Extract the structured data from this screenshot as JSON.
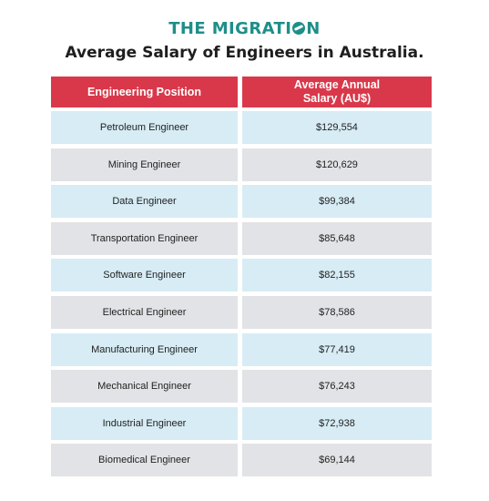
{
  "brand": {
    "before": "THE MIGRATI",
    "after": "N"
  },
  "title": "Average Salary of Engineers in Australia.",
  "table": {
    "headers": [
      "Engineering Position",
      "Average Annual\nSalary (AU$)"
    ],
    "rows": [
      {
        "position": "Petroleum Engineer",
        "salary": "$129,554"
      },
      {
        "position": "Mining Engineer",
        "salary": "$120,629"
      },
      {
        "position": "Data Engineer",
        "salary": "$99,384"
      },
      {
        "position": "Transportation Engineer",
        "salary": "$85,648"
      },
      {
        "position": "Software Engineer",
        "salary": "$82,155"
      },
      {
        "position": "Electrical Engineer",
        "salary": "$78,586"
      },
      {
        "position": "Manufacturing Engineer",
        "salary": "$77,419"
      },
      {
        "position": "Mechanical Engineer",
        "salary": "$76,243"
      },
      {
        "position": "Industrial Engineer",
        "salary": "$72,938"
      },
      {
        "position": "Biomedical Engineer",
        "salary": "$69,144"
      }
    ]
  },
  "colors": {
    "header": "#d9384a",
    "row_blue": "#d7ecf5",
    "row_gray": "#e2e3e6",
    "brand": "#1f8e88"
  }
}
